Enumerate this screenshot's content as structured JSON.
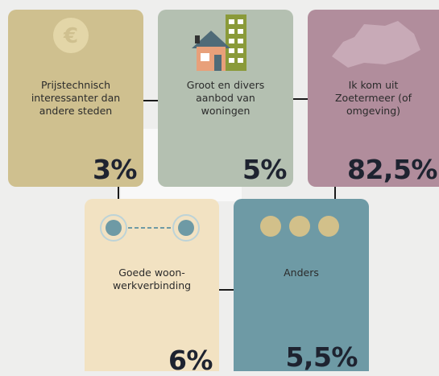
{
  "cards": [
    {
      "label": [
        "Prijstechnisch",
        "interessanter dan",
        "andere steden"
      ],
      "value": "3%"
    },
    {
      "label": [
        "Groot en divers",
        "aanbod van",
        "woningen"
      ],
      "value": "5%"
    },
    {
      "label": [
        "Ik kom uit",
        "Zoetermeer (of",
        "omgeving)"
      ],
      "value": "82,5%"
    },
    {
      "label": [
        "Goede woon-",
        "werkverbinding"
      ],
      "value": "6%"
    },
    {
      "label": [
        "Anders"
      ],
      "value": "5,5%"
    }
  ]
}
